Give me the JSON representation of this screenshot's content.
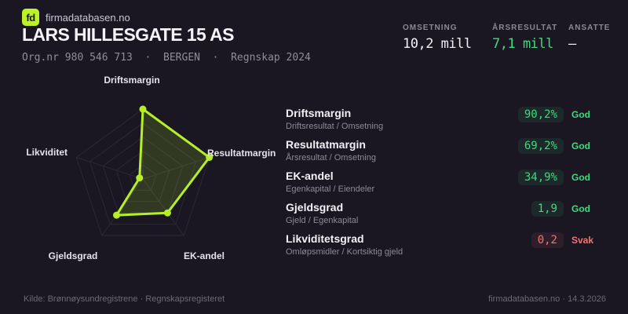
{
  "brand": {
    "logo": "fd",
    "site": "firmadatabasen.no"
  },
  "header": {
    "company_name": "LARS HILLESGATE 15 AS",
    "org_line": "Org.nr 980 546 713  ·  BERGEN  ·  Regnskap 2024"
  },
  "kpis": [
    {
      "label": "OMSETNING",
      "value": "10,2 mill"
    },
    {
      "label": "ÅRSRESULTAT",
      "value": "7,1 mill"
    },
    {
      "label": "ANSATTE",
      "value": "–"
    }
  ],
  "chart_data": {
    "type": "radar",
    "categories": [
      "Driftsmargin",
      "Resultatmargin",
      "EK-andel",
      "Gjeldsgrad",
      "Likviditet"
    ],
    "metric_values": [
      "90,2%",
      "69,2%",
      "34,9%",
      "1,9",
      "0,2"
    ],
    "plotted_fraction_of_max": [
      1,
      1,
      0.6,
      0.64,
      0.05
    ],
    "ring_fractions": [
      0.2,
      0.4,
      0.6,
      0.8,
      1
    ],
    "rings": 5,
    "stroke_color": "#b5ef28",
    "fill_color": "rgba(181,239,40,0.16)",
    "grid_color": "#2b2836",
    "legend": "none"
  },
  "metrics": [
    {
      "title": "Driftsmargin",
      "formula": "Driftsresultat / Omsetning",
      "value": "90,2%",
      "status": "God"
    },
    {
      "title": "Resultatmargin",
      "formula": "Årsresultat / Omsetning",
      "value": "69,2%",
      "status": "God"
    },
    {
      "title": "EK-andel",
      "formula": "Egenkapital / Eiendeler",
      "value": "34,9%",
      "status": "God"
    },
    {
      "title": "Gjeldsgrad",
      "formula": "Gjeld / Egenkapital",
      "value": "1,9",
      "status": "God"
    },
    {
      "title": "Likviditetsgrad",
      "formula": "Omløpsmidler / Kortsiktig gjeld",
      "value": "0,2",
      "status": "Svak"
    }
  ],
  "colors": {
    "background": "#1a1723",
    "accent_lime": "#b5ef28",
    "good_green": "#41d97d",
    "weak_red": "#f17474"
  },
  "footer": {
    "left": "Kilde: Brønnøysundregistrene · Regnskapsregisteret",
    "right": "firmadatabasen.no · 14.3.2026"
  }
}
